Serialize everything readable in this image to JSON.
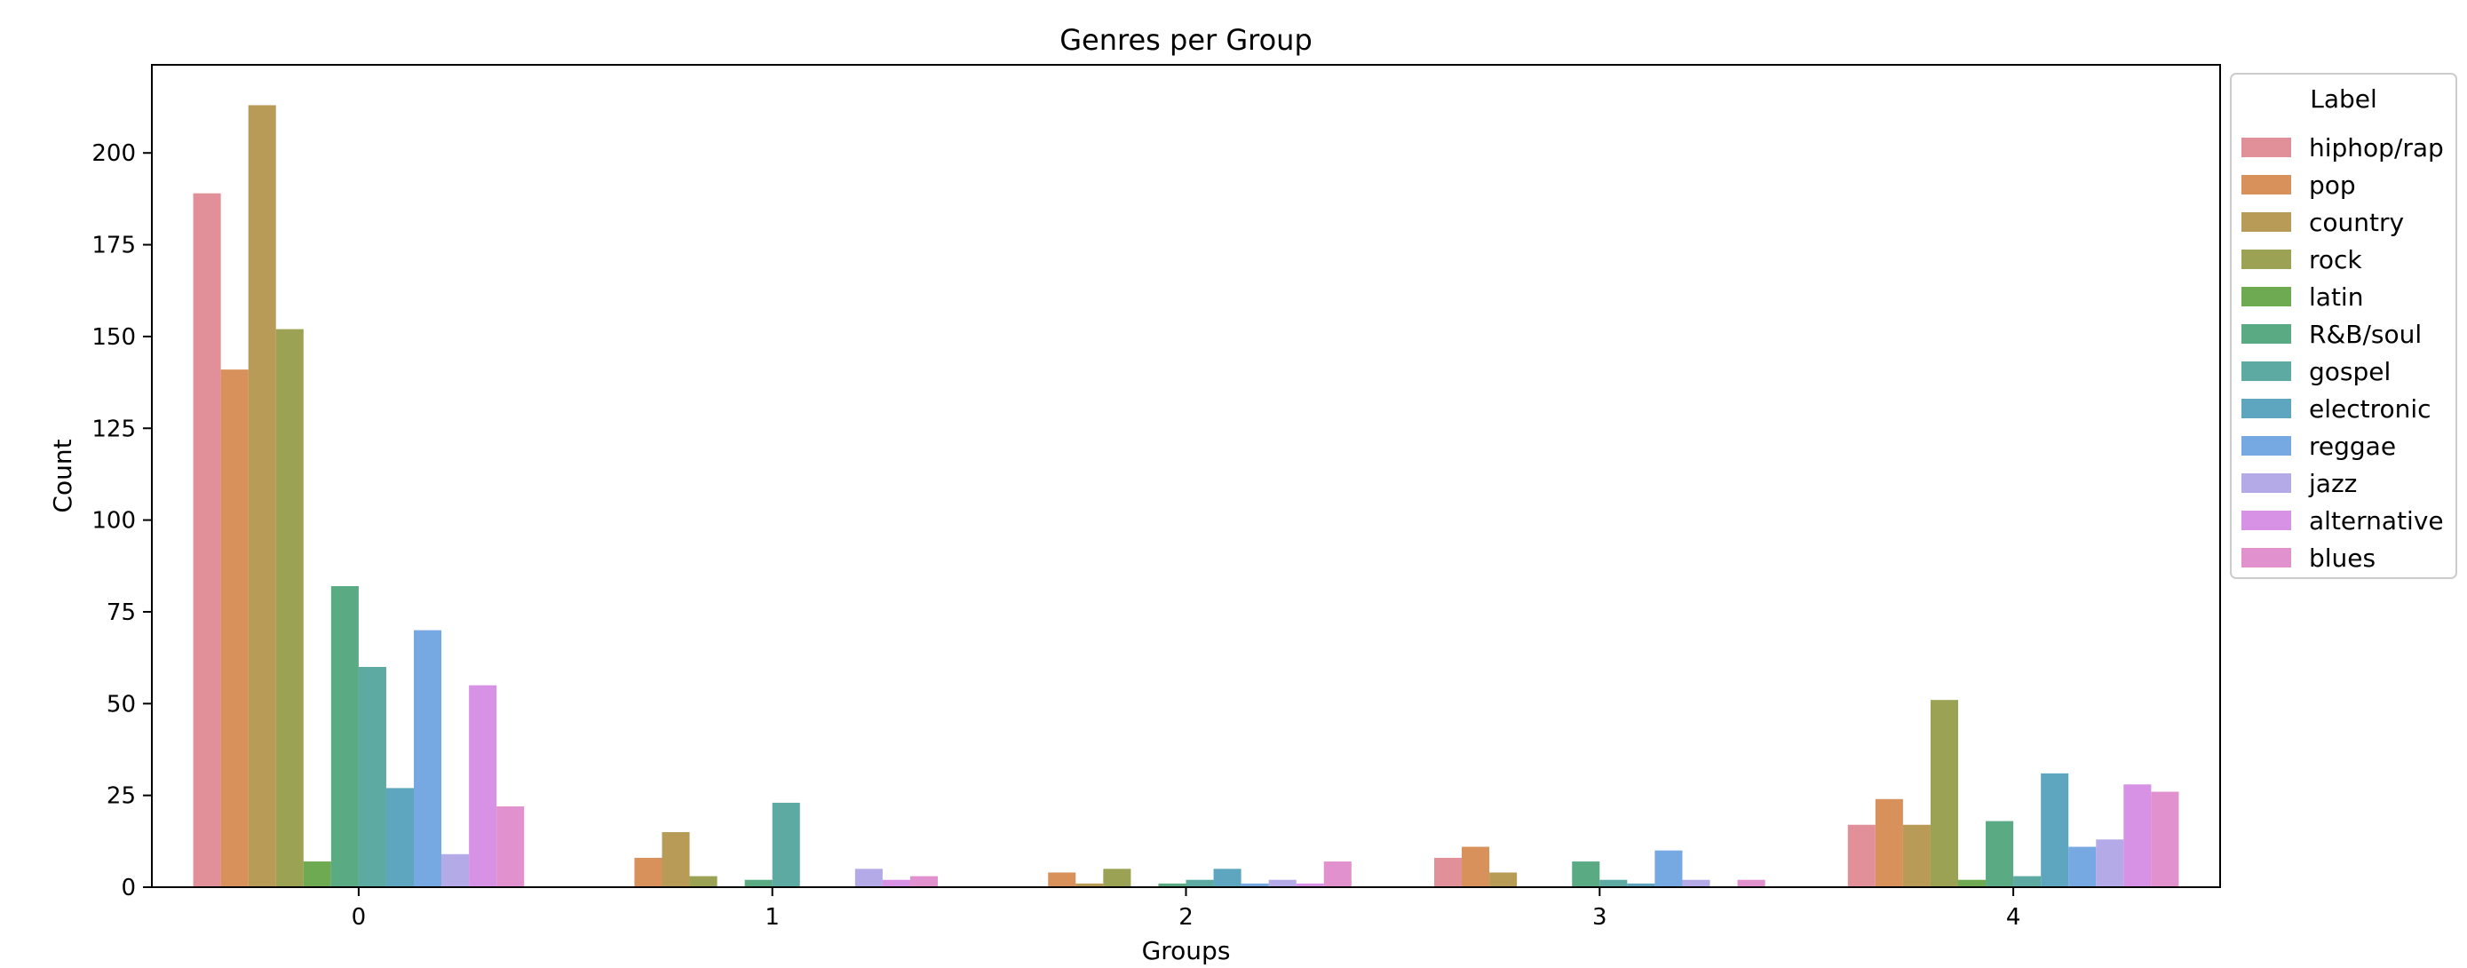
{
  "chart_data": {
    "type": "bar",
    "title": "Genres per Group",
    "xlabel": "Groups",
    "ylabel": "Count",
    "categories": [
      "0",
      "1",
      "2",
      "3",
      "4"
    ],
    "ylim": [
      0,
      224
    ],
    "yticks": [
      0,
      25,
      50,
      75,
      100,
      125,
      150,
      175,
      200
    ],
    "grid": false,
    "legend": {
      "title": "Label",
      "placement": "outside-top-right"
    },
    "series": [
      {
        "name": "hiphop/rap",
        "color": "#e1909a",
        "values": [
          189,
          0,
          0,
          8,
          17
        ]
      },
      {
        "name": "pop",
        "color": "#d8915a",
        "values": [
          141,
          8,
          4,
          11,
          24
        ]
      },
      {
        "name": "country",
        "color": "#b99b58",
        "values": [
          213,
          15,
          1,
          4,
          17
        ]
      },
      {
        "name": "rock",
        "color": "#9ba253",
        "values": [
          152,
          3,
          5,
          0,
          51
        ]
      },
      {
        "name": "latin",
        "color": "#6eaa52",
        "values": [
          7,
          0,
          0,
          0,
          2
        ]
      },
      {
        "name": "R&B/soul",
        "color": "#5aaa84",
        "values": [
          82,
          2,
          1,
          7,
          18
        ]
      },
      {
        "name": "gospel",
        "color": "#5daaa2",
        "values": [
          60,
          23,
          2,
          2,
          3
        ]
      },
      {
        "name": "electronic",
        "color": "#5ea6c0",
        "values": [
          27,
          0,
          5,
          1,
          31
        ]
      },
      {
        "name": "reggae",
        "color": "#76a9e2",
        "values": [
          70,
          0,
          1,
          10,
          11
        ]
      },
      {
        "name": "jazz",
        "color": "#b4aae8",
        "values": [
          9,
          5,
          2,
          2,
          13
        ]
      },
      {
        "name": "alternative",
        "color": "#d792e5",
        "values": [
          55,
          2,
          1,
          0,
          28
        ]
      },
      {
        "name": "blues",
        "color": "#e191cd",
        "values": [
          22,
          3,
          7,
          2,
          26
        ]
      }
    ]
  }
}
